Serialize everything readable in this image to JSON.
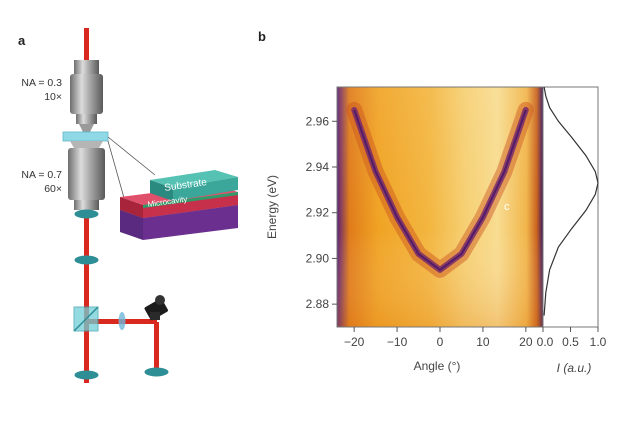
{
  "figure": {
    "panel_a": {
      "label": "a",
      "objective_top": {
        "na": "NA = 0.3",
        "mag": "10×"
      },
      "objective_bottom": {
        "na": "NA = 0.7",
        "mag": "60×"
      },
      "sample": {
        "top_layer": "Substrate",
        "middle_layer": "Microcavity"
      },
      "colors": {
        "beam": "#d9281e",
        "lens": "#2e8e96",
        "substrate": "#3aa79a",
        "microcavity": "#d3344a",
        "base": "#6a2f8f"
      }
    },
    "panel_b": {
      "label": "b",
      "annotation": "c",
      "colormap": [
        "#2a0f4f",
        "#6a1f7a",
        "#c6531a",
        "#ef9a1f",
        "#f7d27a"
      ]
    }
  },
  "chart_data": [
    {
      "type": "heatmap",
      "title": "",
      "xlabel": "Angle (°)",
      "ylabel": "Energy (eV)",
      "xlim": [
        -24,
        24
      ],
      "ylim": [
        2.87,
        2.975
      ],
      "xticks": [
        "−20",
        "−10",
        "0",
        "10",
        "20"
      ],
      "xtick_values": [
        -20,
        -10,
        0,
        10,
        20
      ],
      "yticks": [
        "2.88",
        "2.90",
        "2.92",
        "2.94",
        "2.96"
      ],
      "ytick_values": [
        2.88,
        2.9,
        2.92,
        2.94,
        2.96
      ],
      "dispersion": {
        "name": "",
        "x": [
          -20,
          -15,
          -10,
          -5,
          0,
          5,
          10,
          15,
          20
        ],
        "y": [
          2.965,
          2.938,
          2.918,
          2.902,
          2.895,
          2.902,
          2.918,
          2.938,
          2.965
        ]
      },
      "grid": false
    },
    {
      "type": "line",
      "title": "",
      "xlabel": "I (a.u.)",
      "ylabel": "",
      "xlim": [
        0,
        1
      ],
      "xticks": [
        "0.0",
        "0.5",
        "1.0"
      ],
      "xtick_values": [
        0,
        0.5,
        1.0
      ],
      "ylim": [
        2.87,
        2.975
      ],
      "series": [
        {
          "name": "",
          "x": [
            0.02,
            0.05,
            0.12,
            0.28,
            0.52,
            0.78,
            0.95,
            1.0,
            0.95,
            0.78,
            0.52,
            0.28,
            0.12,
            0.05,
            0.02
          ],
          "y": [
            2.875,
            2.885,
            2.895,
            2.905,
            2.913,
            2.921,
            2.928,
            2.933,
            2.938,
            2.945,
            2.953,
            2.96,
            2.966,
            2.971,
            2.975
          ]
        }
      ]
    }
  ]
}
